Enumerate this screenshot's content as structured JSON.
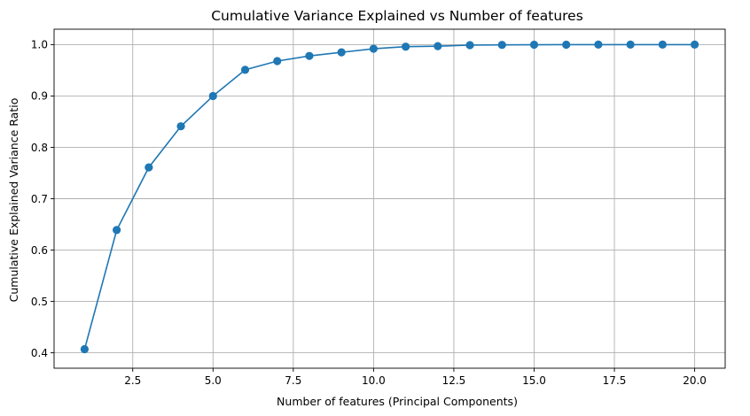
{
  "chart_data": {
    "type": "line",
    "title": "Cumulative Variance Explained vs Number of features",
    "xlabel": "Number of features (Principal Components)",
    "ylabel": "Cumulative Explained Variance Ratio",
    "xlim": [
      0.05,
      20.95
    ],
    "ylim": [
      0.37,
      1.03
    ],
    "xticks": [
      2.5,
      5.0,
      7.5,
      10.0,
      12.5,
      15.0,
      17.5,
      20.0
    ],
    "xtick_labels": [
      "2.5",
      "5.0",
      "7.5",
      "10.0",
      "12.5",
      "15.0",
      "17.5",
      "20.0"
    ],
    "yticks": [
      0.4,
      0.5,
      0.6,
      0.7,
      0.8,
      0.9,
      1.0
    ],
    "ytick_labels": [
      "0.4",
      "0.5",
      "0.6",
      "0.7",
      "0.8",
      "0.9",
      "1.0"
    ],
    "grid": true,
    "marker": "circle",
    "color": "#1f77b4",
    "series": [
      {
        "x": [
          1,
          2,
          3,
          4,
          5,
          6,
          7,
          8,
          9,
          10,
          11,
          12,
          13,
          14,
          15,
          16,
          17,
          18,
          19,
          20
        ],
        "values": [
          0.407,
          0.639,
          0.761,
          0.841,
          0.9,
          0.951,
          0.968,
          0.978,
          0.985,
          0.992,
          0.996,
          0.997,
          0.999,
          0.9995,
          0.9998,
          0.9999,
          1.0,
          1.0,
          1.0,
          1.0
        ]
      }
    ]
  }
}
